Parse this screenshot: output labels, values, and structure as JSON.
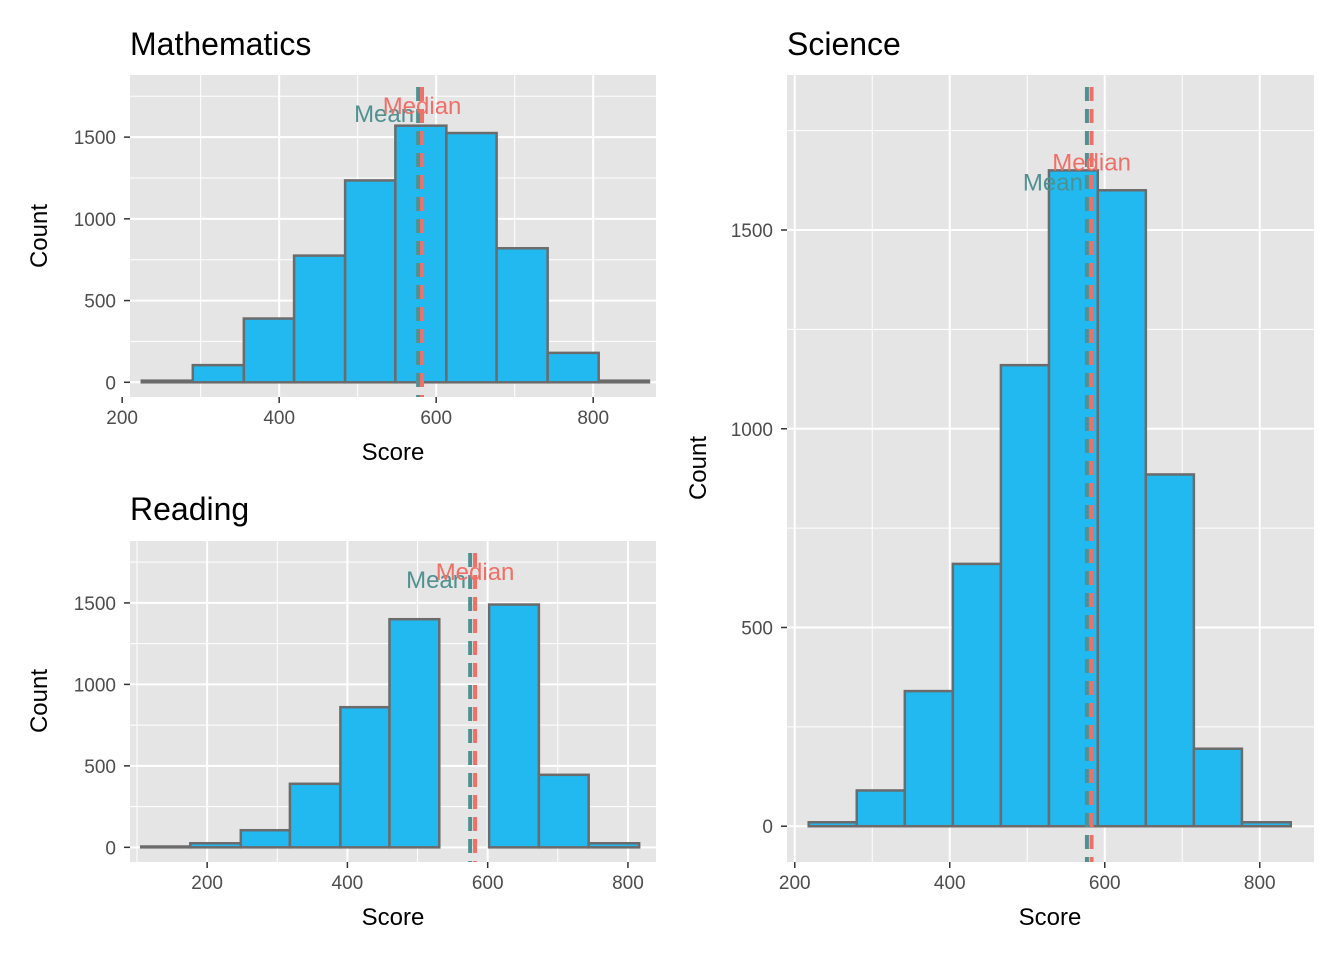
{
  "colors": {
    "panel_bg": "#e5e5e5",
    "grid": "#ffffff",
    "bar_fill": "#22b8f0",
    "bar_stroke": "#6b6b6b",
    "mean": "#4f9191",
    "median": "#f07068",
    "tick_text": "#4d4d4d"
  },
  "chart_data": [
    {
      "type": "bar",
      "title": "Mathematics",
      "xlabel": "Score",
      "ylabel": "Count",
      "xlim": [
        210,
        880
      ],
      "ylim": [
        -90,
        1880
      ],
      "xticks": [
        200,
        400,
        600,
        800
      ],
      "yticks": [
        0,
        500,
        1000,
        1500
      ],
      "tick_labels_x": [
        "200",
        "400",
        "600",
        "800"
      ],
      "tick_labels_y": [
        "0",
        "500",
        "1000",
        "1500"
      ],
      "bins": [
        {
          "x0": 225,
          "x1": 290,
          "count": 10
        },
        {
          "x0": 290,
          "x1": 355,
          "count": 105
        },
        {
          "x0": 355,
          "x1": 419,
          "count": 390
        },
        {
          "x0": 419,
          "x1": 484,
          "count": 775
        },
        {
          "x0": 484,
          "x1": 548,
          "count": 1235
        },
        {
          "x0": 548,
          "x1": 613,
          "count": 1570
        },
        {
          "x0": 613,
          "x1": 677,
          "count": 1525
        },
        {
          "x0": 677,
          "x1": 742,
          "count": 820
        },
        {
          "x0": 742,
          "x1": 807,
          "count": 180
        },
        {
          "x0": 807,
          "x1": 871,
          "count": 10
        }
      ],
      "mean": 577,
      "median": 582,
      "mean_label": "Mean",
      "median_label": "Median",
      "mean_label_y": 1640,
      "median_label_y": 1690,
      "grid": true
    },
    {
      "type": "bar",
      "title": "Reading",
      "xlabel": "Score",
      "ylabel": "Count",
      "xlim": [
        90,
        840
      ],
      "ylim": [
        -90,
        1880
      ],
      "xticks": [
        200,
        400,
        600,
        800
      ],
      "yticks": [
        0,
        500,
        1000,
        1500
      ],
      "tick_labels_x": [
        "200",
        "400",
        "600",
        "800"
      ],
      "tick_labels_y": [
        "0",
        "500",
        "1000",
        "1500"
      ],
      "bins": [
        {
          "x0": 106,
          "x1": 176,
          "count": 5
        },
        {
          "x0": 176,
          "x1": 248,
          "count": 25
        },
        {
          "x0": 248,
          "x1": 318,
          "count": 105
        },
        {
          "x0": 318,
          "x1": 390,
          "count": 390
        },
        {
          "x0": 390,
          "x1": 460,
          "count": 860
        },
        {
          "x0": 460,
          "x1": 531,
          "count": 1400
        },
        {
          "x0": 531,
          "x1": 602,
          "count": 0
        },
        {
          "x0": 602,
          "x1": 673,
          "count": 1490
        },
        {
          "x0": 673,
          "x1": 744,
          "count": 445
        },
        {
          "x0": 744,
          "x1": 816,
          "count": 25
        }
      ],
      "mean": 575,
      "median": 582,
      "mean_label": "Mean",
      "median_label": "Median",
      "mean_label_y": 1640,
      "median_label_y": 1690,
      "grid": true
    },
    {
      "type": "bar",
      "title": "Science",
      "xlabel": "Score",
      "ylabel": "Count",
      "xlim": [
        190,
        870
      ],
      "ylim": [
        -90,
        1890
      ],
      "xticks": [
        200,
        400,
        600,
        800
      ],
      "yticks": [
        0,
        500,
        1000,
        1500
      ],
      "tick_labels_x": [
        "200",
        "400",
        "600",
        "800"
      ],
      "tick_labels_y": [
        "0",
        "500",
        "1000",
        "1500"
      ],
      "bins": [
        {
          "x0": 218,
          "x1": 280,
          "count": 10
        },
        {
          "x0": 280,
          "x1": 342,
          "count": 90
        },
        {
          "x0": 342,
          "x1": 404,
          "count": 340
        },
        {
          "x0": 404,
          "x1": 466,
          "count": 660
        },
        {
          "x0": 466,
          "x1": 528,
          "count": 1160
        },
        {
          "x0": 528,
          "x1": 591,
          "count": 1650
        },
        {
          "x0": 591,
          "x1": 653,
          "count": 1600
        },
        {
          "x0": 653,
          "x1": 715,
          "count": 885
        },
        {
          "x0": 715,
          "x1": 777,
          "count": 195
        },
        {
          "x0": 777,
          "x1": 840,
          "count": 10
        }
      ],
      "mean": 577,
      "median": 583,
      "mean_label": "Mean",
      "median_label": "Median",
      "mean_label_y": 1620,
      "median_label_y": 1670,
      "grid": true
    }
  ]
}
